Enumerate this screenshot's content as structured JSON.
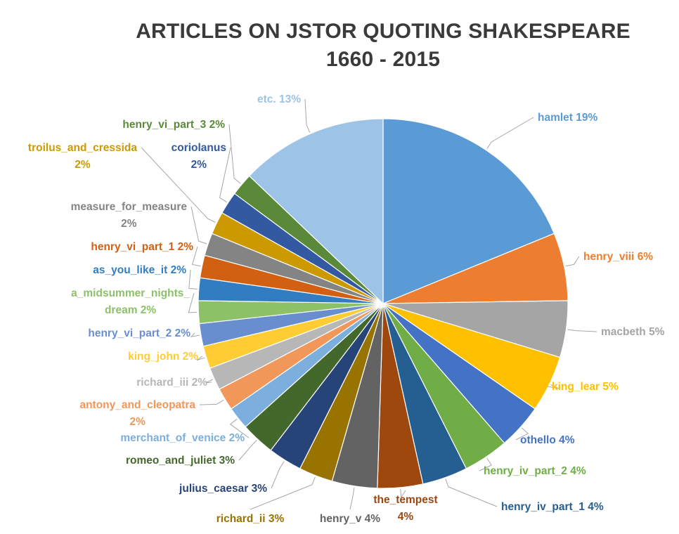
{
  "chart_data": {
    "type": "pie",
    "title": "ARTICLES ON JSTOR QUOTING SHAKESPEARE",
    "subtitle": "1660 - 2015",
    "start_angle_deg": 0,
    "direction": "clockwise",
    "legend": "none",
    "slices": [
      {
        "name": "hamlet",
        "value": 19,
        "label": "19%",
        "color": "#5B9BD5"
      },
      {
        "name": "henry_viii",
        "value": 6,
        "label": "6%",
        "color": "#ED7D31"
      },
      {
        "name": "macbeth",
        "value": 5,
        "label": "5%",
        "color": "#A5A5A5"
      },
      {
        "name": "king_lear",
        "value": 5,
        "label": "5%",
        "color": "#FFC000"
      },
      {
        "name": "othello",
        "value": 4,
        "label": "4%",
        "color": "#4472C4"
      },
      {
        "name": "henry_iv_part_2",
        "value": 4,
        "label": "4%",
        "color": "#70AD47"
      },
      {
        "name": "henry_iv_part_1",
        "value": 4,
        "label": "4%",
        "color": "#255E91"
      },
      {
        "name": "the_tempest",
        "value": 4,
        "label": "4%",
        "color": "#9E480E"
      },
      {
        "name": "henry_v",
        "value": 4,
        "label": "4%",
        "color": "#636363"
      },
      {
        "name": "richard_ii",
        "value": 3,
        "label": "3%",
        "color": "#997300"
      },
      {
        "name": "julius_caesar",
        "value": 3,
        "label": "3%",
        "color": "#264478"
      },
      {
        "name": "romeo_and_juliet",
        "value": 3,
        "label": "3%",
        "color": "#43682B"
      },
      {
        "name": "merchant_of_venice",
        "value": 2,
        "label": "2%",
        "color": "#7CAFDD"
      },
      {
        "name": "antony_and_cleopatra",
        "value": 2,
        "label": "2%",
        "color": "#F1975A"
      },
      {
        "name": "richard_iii",
        "value": 2,
        "label": "2%",
        "color": "#B7B7B7"
      },
      {
        "name": "king_john",
        "value": 2,
        "label": "2%",
        "color": "#FFCD33"
      },
      {
        "name": "henry_vi_part_2",
        "value": 2,
        "label": "2%",
        "color": "#698ED0"
      },
      {
        "name": "a_midsummer_nights_dream",
        "value": 2,
        "label": "2%",
        "color": "#8CC168"
      },
      {
        "name": "as_you_like_it",
        "value": 2,
        "label": "2%",
        "color": "#327DC2"
      },
      {
        "name": "henry_vi_part_1",
        "value": 2,
        "label": "2%",
        "color": "#D26012"
      },
      {
        "name": "measure_for_measure",
        "value": 2,
        "label": "2%",
        "color": "#848484"
      },
      {
        "name": "troilus_and_cressida",
        "value": 2,
        "label": "2%",
        "color": "#CC9A00"
      },
      {
        "name": "coriolanus",
        "value": 2,
        "label": "2%",
        "color": "#335AA1"
      },
      {
        "name": "henry_vi_part_3",
        "value": 2,
        "label": "2%",
        "color": "#5A8A39"
      },
      {
        "name": "etc.",
        "value": 13,
        "label": "13%",
        "color": "#9DC3E6"
      }
    ]
  }
}
